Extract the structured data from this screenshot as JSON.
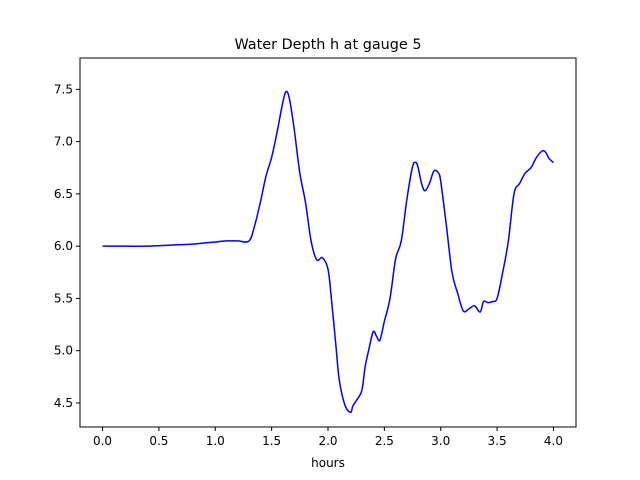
{
  "chart_data": {
    "type": "line",
    "title": "Water Depth h at gauge 5",
    "xlabel": "hours",
    "ylabel": "",
    "xlim": [
      -0.2,
      4.2
    ],
    "ylim": [
      4.27,
      7.8
    ],
    "grid": false,
    "legend": "none",
    "xticks": [
      0.0,
      0.5,
      1.0,
      1.5,
      2.0,
      2.5,
      3.0,
      3.5,
      4.0
    ],
    "xtick_labels": [
      "0.0",
      "0.5",
      "1.0",
      "1.5",
      "2.0",
      "2.5",
      "3.0",
      "3.5",
      "4.0"
    ],
    "yticks": [
      4.5,
      5.0,
      5.5,
      6.0,
      6.5,
      7.0,
      7.5
    ],
    "ytick_labels": [
      "4.5",
      "5.0",
      "5.5",
      "6.0",
      "6.5",
      "7.0",
      "7.5"
    ],
    "series": [
      {
        "color": "#0000ff",
        "x": [
          0.0,
          0.2,
          0.4,
          0.6,
          0.8,
          0.9,
          1.0,
          1.1,
          1.2,
          1.3,
          1.35,
          1.4,
          1.45,
          1.5,
          1.55,
          1.6,
          1.63,
          1.66,
          1.7,
          1.75,
          1.8,
          1.85,
          1.9,
          1.95,
          2.0,
          2.03,
          2.07,
          2.1,
          2.15,
          2.2,
          2.22,
          2.25,
          2.3,
          2.33,
          2.36,
          2.4,
          2.43,
          2.46,
          2.5,
          2.55,
          2.6,
          2.65,
          2.7,
          2.75,
          2.78,
          2.8,
          2.83,
          2.86,
          2.9,
          2.94,
          2.98,
          3.0,
          3.05,
          3.1,
          3.15,
          3.2,
          3.25,
          3.3,
          3.35,
          3.38,
          3.42,
          3.46,
          3.5,
          3.55,
          3.6,
          3.65,
          3.7,
          3.75,
          3.8,
          3.85,
          3.9,
          3.93,
          3.96,
          4.0
        ],
        "y": [
          6.0,
          6.0,
          6.0,
          6.01,
          6.02,
          6.03,
          6.04,
          6.05,
          6.05,
          6.05,
          6.2,
          6.42,
          6.67,
          6.85,
          7.1,
          7.38,
          7.48,
          7.4,
          7.12,
          6.7,
          6.42,
          6.05,
          5.87,
          5.89,
          5.78,
          5.5,
          5.05,
          4.72,
          4.48,
          4.41,
          4.47,
          4.52,
          4.62,
          4.85,
          5.0,
          5.18,
          5.14,
          5.1,
          5.28,
          5.5,
          5.88,
          6.05,
          6.45,
          6.76,
          6.8,
          6.75,
          6.6,
          6.53,
          6.6,
          6.72,
          6.7,
          6.62,
          6.2,
          5.75,
          5.55,
          5.38,
          5.4,
          5.43,
          5.37,
          5.47,
          5.46,
          5.47,
          5.5,
          5.75,
          6.05,
          6.5,
          6.6,
          6.7,
          6.75,
          6.85,
          6.91,
          6.9,
          6.84,
          6.8
        ]
      }
    ]
  }
}
